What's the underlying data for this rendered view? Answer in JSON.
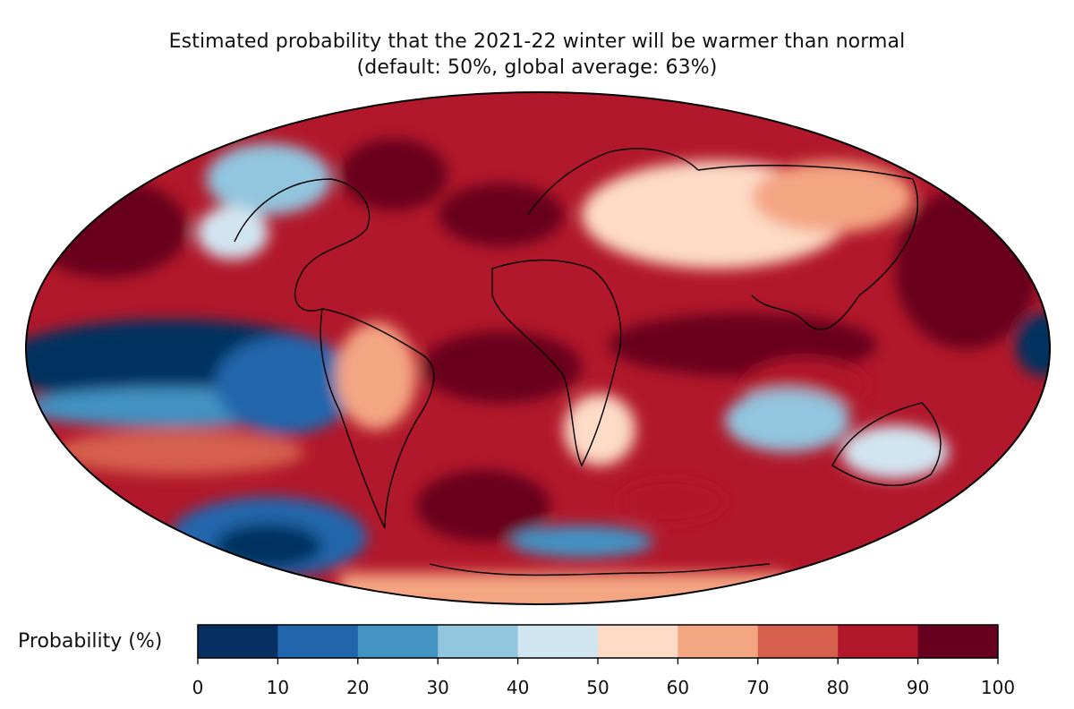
{
  "title_line1": "Estimated probability that the 2021-22 winter will be warmer than normal",
  "title_line2": "(default: 50%, global average: 63%)",
  "colorbar": {
    "label": "Probability (%)",
    "min": 0,
    "max": 100,
    "ticks": [
      "0",
      "10",
      "20",
      "30",
      "40",
      "50",
      "60",
      "70",
      "80",
      "90",
      "100"
    ],
    "colors": [
      "#053061",
      "#2166ac",
      "#4393c3",
      "#92c5de",
      "#d1e5f0",
      "#fddbc7",
      "#f4a582",
      "#d6604d",
      "#b2182b",
      "#67001f"
    ]
  },
  "chart_data": {
    "type": "heatmap",
    "projection": "Mollweide (global)",
    "variable": "Probability of warmer-than-normal winter",
    "units": "%",
    "default_value": 50,
    "global_average": 63,
    "value_range": [
      0,
      100
    ]
  }
}
